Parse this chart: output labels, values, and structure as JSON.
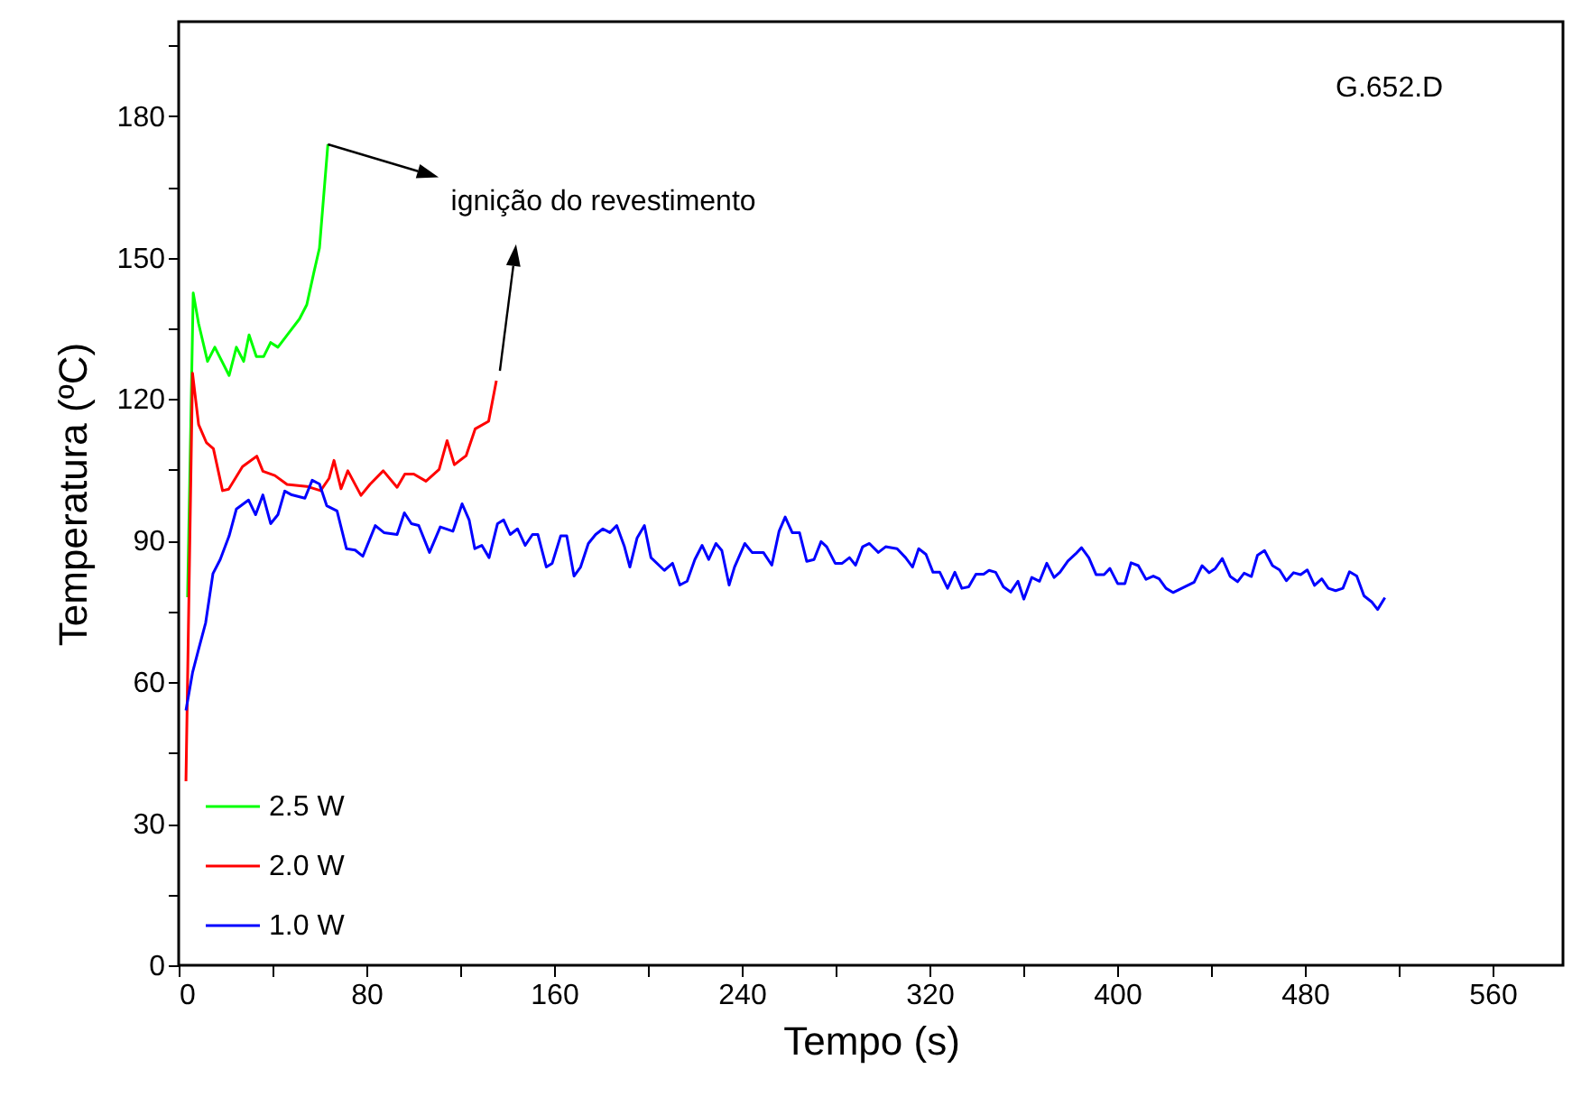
{
  "chart_data": {
    "type": "line",
    "xlabel": "Tempo (s)",
    "ylabel": "Temperatura (ºC)",
    "xlim": [
      0,
      590
    ],
    "ylim": [
      0,
      200
    ],
    "xticks": [
      0,
      {
        "value": 40,
        "label": null
      },
      80,
      {
        "value": 120,
        "label": null
      },
      160,
      {
        "value": 200,
        "label": null
      },
      240,
      {
        "value": 280,
        "label": null
      },
      320,
      {
        "value": 360,
        "label": null
      },
      400,
      {
        "value": 440,
        "label": null
      },
      480,
      {
        "value": 520,
        "label": null
      },
      560
    ],
    "yticks": [
      0,
      {
        "value": 15,
        "label": null
      },
      30,
      {
        "value": 45,
        "label": null
      },
      60,
      {
        "value": 75,
        "label": null
      },
      90,
      {
        "value": 105,
        "label": null
      },
      120,
      {
        "value": 135,
        "label": null
      },
      150,
      {
        "value": 165,
        "label": null
      },
      180,
      {
        "value": 195,
        "label": null
      }
    ],
    "grid": false,
    "legend": "bottom left",
    "annotations": [
      "G.652.D",
      {
        "text": "ignição do revestimento",
        "x": 63.6,
        "y": 174
      }
    ],
    "series": [
      {
        "name": "2.5 W",
        "color": "#00ff00",
        "x": [
          3.8,
          6.2,
          8.5,
          12.3,
          15.4,
          21.5,
          24.6,
          27.7,
          30,
          33.1,
          36.2,
          39.2,
          42.3,
          46.9,
          51.5,
          54.6,
          57.7,
          60,
          63.6
        ],
        "values": [
          78,
          142.5,
          136,
          128,
          131,
          125,
          131,
          128,
          133.6,
          129,
          129,
          132,
          131,
          134,
          137,
          140,
          147,
          152,
          174
        ]
      },
      {
        "name": "2.0 W",
        "color": "#ff0000",
        "x": [
          3.1,
          5.9,
          8.5,
          11.8,
          14.8,
          18.7,
          21.3,
          27.2,
          33.3,
          35.9,
          41,
          46.2,
          54.6,
          60.5,
          64.1,
          66.2,
          69.2,
          72.1,
          77.7,
          81.5,
          87.2,
          93.1,
          96.4,
          100.2,
          105.4,
          111,
          114.4,
          117.5,
          122.5,
          126.4,
          132.1,
          135.4
        ],
        "values": [
          39,
          125.5,
          114.6,
          110.8,
          109.5,
          100.6,
          100.9,
          105.7,
          107.9,
          104.7,
          103.8,
          101.9,
          101.5,
          100.6,
          103.2,
          107,
          101,
          104.8,
          99.6,
          101.9,
          104.8,
          101.3,
          104.1,
          104.1,
          102.6,
          105.1,
          111.2,
          106.1,
          108,
          113.7,
          115.3,
          123.9
        ]
      },
      {
        "name": "1.0 W",
        "color": "#0000ff",
        "x": [
          3.1,
          5.9,
          8.5,
          11.5,
          14.6,
          17.7,
          21.5,
          24.6,
          29.8,
          32.8,
          35.9,
          39.2,
          42.3,
          45.2,
          48.2,
          53.8,
          56.9,
          60,
          63.1,
          67.5,
          71.5,
          75.2,
          78.5,
          83.8,
          87.5,
          93.1,
          96.2,
          99.2,
          102.3,
          106.9,
          111.5,
          116.9,
          120.8,
          123.8,
          126.2,
          129.2,
          132.3,
          135.9,
          138.5,
          141.3,
          144.4,
          147.7,
          150.8,
          153.1,
          156.7,
          159.2,
          162.8,
          165.4,
          168.5,
          171.3,
          174.6,
          177.7,
          180.8,
          183.8,
          186.7,
          190,
          192.3,
          195.4,
          198.5,
          201.3,
          207,
          210.5,
          213.6,
          216.7,
          220,
          223.1,
          225.9,
          229,
          231.5,
          234.6,
          236.9,
          241.3,
          244.4,
          249.2,
          252.8,
          255.9,
          258.5,
          261.5,
          264.6,
          267.7,
          270.8,
          273.8,
          276.2,
          279.8,
          282.8,
          285.9,
          288.5,
          291.5,
          294.4,
          298.2,
          301.3,
          306.2,
          309.8,
          312.8,
          315.4,
          318.5,
          321.5,
          324.4,
          327.7,
          330.8,
          333.8,
          336.7,
          339.8,
          343.1,
          345.4,
          348.2,
          351.5,
          354.6,
          357.7,
          360.2,
          363.6,
          366.9,
          370,
          373.1,
          375.6,
          379,
          382.3,
          384.8,
          387.9,
          391,
          394.4,
          396.9,
          400.2,
          403.3,
          405.9,
          409,
          412.3,
          415.4,
          417.9,
          420.8,
          423.8,
          432.8,
          436.2,
          439.2,
          441.8,
          444.8,
          448.2,
          451.3,
          454.1,
          457.2,
          459.8,
          462.8,
          466.2,
          469.2,
          472.1,
          475.2,
          478.2,
          481,
          484.1,
          487.2,
          490,
          493.1,
          496.2,
          499,
          502.1,
          505.2,
          508.5,
          511,
          514.1
        ],
        "values": [
          54,
          62,
          67,
          72.6,
          83,
          86,
          91,
          96.7,
          98.6,
          95.5,
          99.7,
          93.6,
          95.5,
          100.5,
          99.7,
          99,
          102.8,
          102,
          97.4,
          96.3,
          88.3,
          88,
          86.7,
          93.2,
          91.7,
          91.3,
          95.9,
          93.6,
          93.2,
          87.5,
          92.9,
          92,
          97.8,
          94.4,
          88.3,
          89,
          86.4,
          93.6,
          94.4,
          91.3,
          92.5,
          89,
          91.3,
          91.3,
          84.4,
          85.2,
          91,
          91,
          82.5,
          84.4,
          89.4,
          91.3,
          92.5,
          91.7,
          93.2,
          88.7,
          84.4,
          90.6,
          93.2,
          86.4,
          83.7,
          85.2,
          80.6,
          81.4,
          86,
          89,
          86,
          89.4,
          87.9,
          80.6,
          84.4,
          89.4,
          87.5,
          87.5,
          84.8,
          92,
          95,
          91.7,
          91.7,
          85.6,
          86,
          89.8,
          88.7,
          85.2,
          85.2,
          86.4,
          84.8,
          88.7,
          89.4,
          87.5,
          88.7,
          88.3,
          86.4,
          84.4,
          88.3,
          87.1,
          83.3,
          83.3,
          79.9,
          83.3,
          79.9,
          80.2,
          82.9,
          82.9,
          83.7,
          83.3,
          80.2,
          79.1,
          81.4,
          77.6,
          82.2,
          81.4,
          85.2,
          82.2,
          83.3,
          85.7,
          87.2,
          88.5,
          86.4,
          82.8,
          82.8,
          84.1,
          80.9,
          80.9,
          85.3,
          84.7,
          81.8,
          82.5,
          81.9,
          79.9,
          79,
          81.2,
          84.7,
          83.2,
          84.1,
          86.2,
          82.4,
          81.3,
          83.1,
          82.4,
          86.9,
          87.9,
          84.7,
          83.8,
          81.5,
          83.2,
          82.8,
          83.8,
          80.5,
          81.9,
          79.9,
          79.4,
          79.9,
          83.4,
          82.5,
          78.3,
          77,
          75.4,
          77.9
        ]
      }
    ]
  }
}
